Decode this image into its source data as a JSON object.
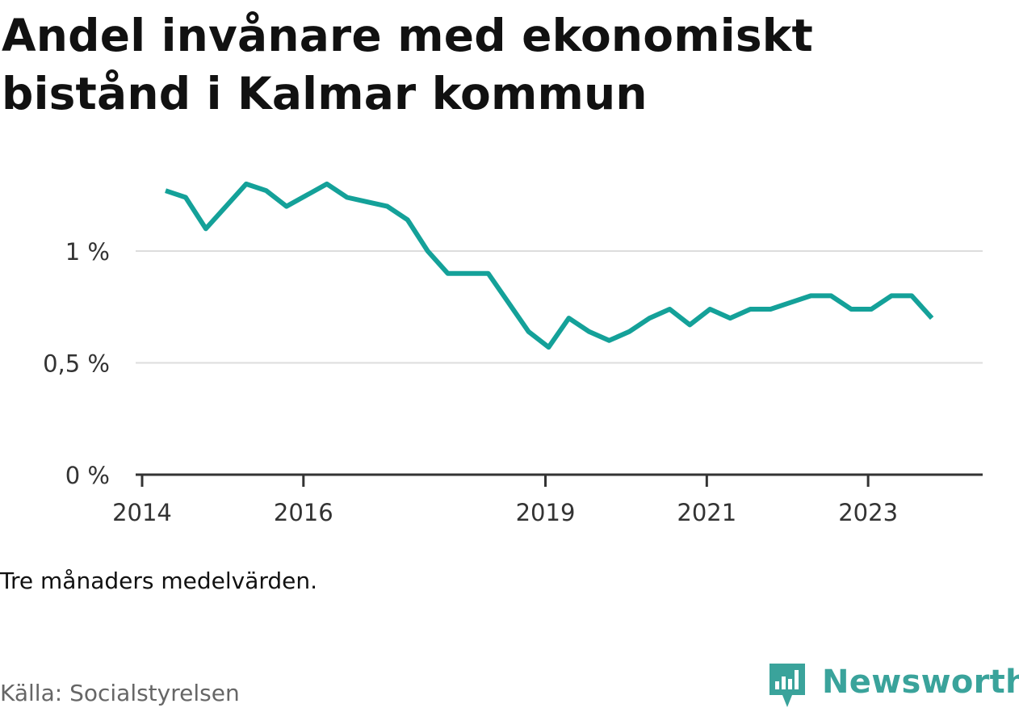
{
  "title": "Andel invånare med ekonomiskt bistånd i Kalmar kommun",
  "note": "Tre månaders medelvärden.",
  "source": "Källa: Socialstyrelsen",
  "brand": {
    "name": "Newsworthy",
    "icon": "newsworthy-logo-icon",
    "color": "#3aa39b"
  },
  "colors": {
    "line": "#14a199",
    "grid": "#dddddd",
    "axis": "#333333"
  },
  "chart_data": {
    "type": "line",
    "title": "Andel invånare med ekonomiskt bistånd i Kalmar kommun",
    "xlabel": "",
    "ylabel": "",
    "ylim": [
      0,
      1.45
    ],
    "xlim": [
      2013.92,
      2024.42
    ],
    "grid": true,
    "y_ticks": [
      {
        "value": 0,
        "label": "0 %"
      },
      {
        "value": 0.5,
        "label": "0,5 %"
      },
      {
        "value": 1,
        "label": "1 %"
      }
    ],
    "x_ticks": [
      {
        "value": 2014,
        "label": "2014"
      },
      {
        "value": 2016,
        "label": "2016"
      },
      {
        "value": 2019,
        "label": "2019"
      },
      {
        "value": 2021,
        "label": "2021"
      },
      {
        "value": 2023,
        "label": "2023"
      }
    ],
    "series": [
      {
        "x": [
          2014.29,
          2014.54,
          2014.79,
          2015.04,
          2015.29,
          2015.54,
          2015.79,
          2016.04,
          2016.29,
          2016.54,
          2016.79,
          2017.04,
          2017.29,
          2017.54,
          2017.79,
          2018.04,
          2018.29,
          2018.54,
          2018.79,
          2019.04,
          2019.29,
          2019.54,
          2019.79,
          2020.04,
          2020.29,
          2020.54,
          2020.79,
          2021.04,
          2021.29,
          2021.54,
          2021.79,
          2022.04,
          2022.29,
          2022.54,
          2022.79,
          2023.04,
          2023.29,
          2023.54,
          2023.79
        ],
        "values": [
          1.27,
          1.24,
          1.1,
          1.2,
          1.3,
          1.27,
          1.2,
          1.25,
          1.3,
          1.24,
          1.22,
          1.2,
          1.14,
          1.0,
          0.9,
          0.9,
          0.9,
          0.77,
          0.64,
          0.57,
          0.7,
          0.64,
          0.6,
          0.64,
          0.7,
          0.74,
          0.67,
          0.74,
          0.7,
          0.74,
          0.74,
          0.77,
          0.8,
          0.8,
          0.74,
          0.74,
          0.8,
          0.8,
          0.7
        ]
      }
    ]
  }
}
